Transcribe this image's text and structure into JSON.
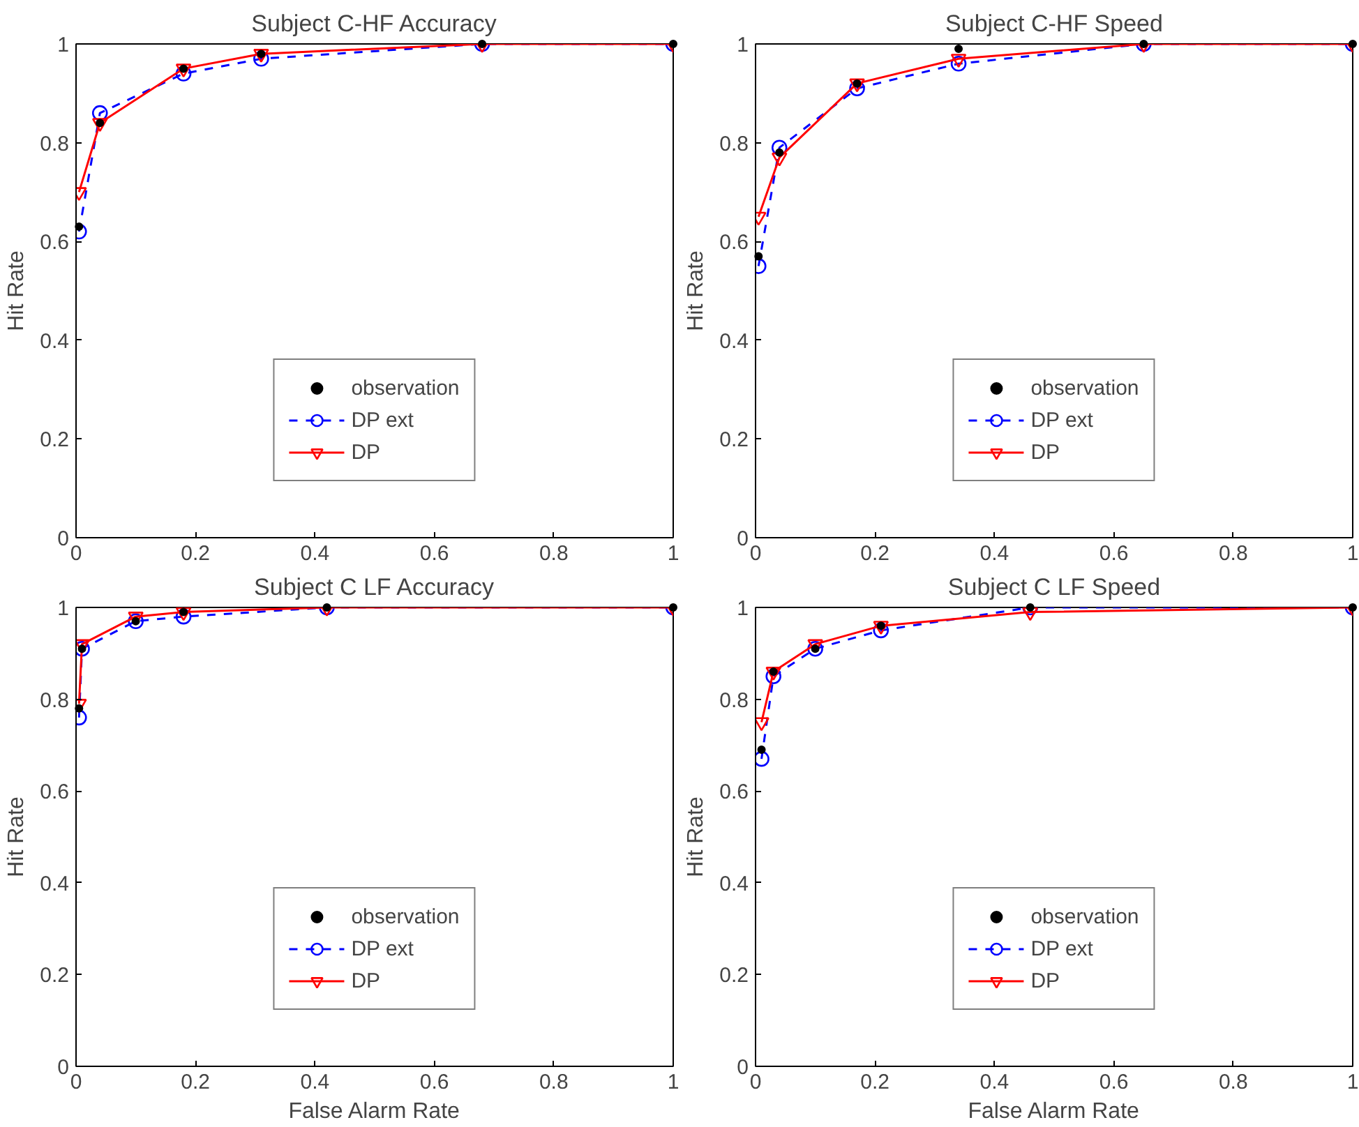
{
  "chart_data": [
    {
      "type": "line",
      "title": "Subject C-HF Accuracy",
      "ylabel": "Hit Rate",
      "xlim": [
        0,
        1
      ],
      "ylim": [
        0,
        1
      ],
      "xticks": [
        0,
        0.2,
        0.4,
        0.6,
        0.8,
        1
      ],
      "yticks": [
        0,
        0.2,
        0.4,
        0.6,
        0.8,
        1
      ],
      "grid": false,
      "legend": "bottom",
      "series": [
        {
          "name": "observation",
          "type": "scatter",
          "marker": "circle",
          "color": "#000000",
          "x": [
            0.005,
            0.04,
            0.18,
            0.31,
            0.68,
            1.0
          ],
          "values": [
            0.63,
            0.84,
            0.95,
            0.98,
            1.0,
            1.0
          ]
        },
        {
          "name": "DP ext",
          "marker": "circle",
          "line_style": "dashed",
          "color": "#0000ff",
          "x": [
            0.005,
            0.04,
            0.18,
            0.31,
            0.68,
            1.0
          ],
          "values": [
            0.62,
            0.86,
            0.94,
            0.97,
            1.0,
            1.0
          ]
        },
        {
          "name": "DP",
          "marker": "triangle",
          "line_style": "solid",
          "color": "#ff0000",
          "x": [
            0.005,
            0.04,
            0.18,
            0.31,
            0.68,
            1.0
          ],
          "values": [
            0.7,
            0.84,
            0.95,
            0.98,
            1.0,
            1.0
          ]
        }
      ]
    },
    {
      "type": "line",
      "title": "Subject C-HF Speed",
      "ylabel": "Hit Rate",
      "xlim": [
        0,
        1
      ],
      "ylim": [
        0,
        1
      ],
      "xticks": [
        0,
        0.2,
        0.4,
        0.6,
        0.8,
        1
      ],
      "yticks": [
        0,
        0.2,
        0.4,
        0.6,
        0.8,
        1
      ],
      "grid": false,
      "legend": "bottom",
      "series": [
        {
          "name": "observation",
          "type": "scatter",
          "marker": "circle",
          "color": "#000000",
          "x": [
            0.005,
            0.04,
            0.17,
            0.34,
            0.65,
            1.0
          ],
          "values": [
            0.57,
            0.78,
            0.92,
            0.99,
            1.0,
            1.0
          ]
        },
        {
          "name": "DP ext",
          "marker": "circle",
          "line_style": "dashed",
          "color": "#0000ff",
          "x": [
            0.005,
            0.04,
            0.17,
            0.34,
            0.65,
            1.0
          ],
          "values": [
            0.55,
            0.79,
            0.91,
            0.96,
            1.0,
            1.0
          ]
        },
        {
          "name": "DP",
          "marker": "triangle",
          "line_style": "solid",
          "color": "#ff0000",
          "x": [
            0.005,
            0.04,
            0.17,
            0.34,
            0.65,
            1.0
          ],
          "values": [
            0.65,
            0.77,
            0.92,
            0.97,
            1.0,
            1.0
          ]
        }
      ]
    },
    {
      "type": "line",
      "title": "Subject C LF Accuracy",
      "ylabel": "Hit Rate",
      "xlabel": "False Alarm Rate",
      "xlim": [
        0,
        1
      ],
      "ylim": [
        0,
        1
      ],
      "xticks": [
        0,
        0.2,
        0.4,
        0.6,
        0.8,
        1
      ],
      "yticks": [
        0,
        0.2,
        0.4,
        0.6,
        0.8,
        1
      ],
      "grid": false,
      "legend": "bottom",
      "series": [
        {
          "name": "observation",
          "type": "scatter",
          "marker": "circle",
          "color": "#000000",
          "x": [
            0.005,
            0.01,
            0.1,
            0.18,
            0.42,
            1.0
          ],
          "values": [
            0.78,
            0.91,
            0.97,
            0.99,
            1.0,
            1.0
          ]
        },
        {
          "name": "DP ext",
          "marker": "circle",
          "line_style": "dashed",
          "color": "#0000ff",
          "x": [
            0.005,
            0.01,
            0.1,
            0.18,
            0.42,
            1.0
          ],
          "values": [
            0.76,
            0.91,
            0.97,
            0.98,
            1.0,
            1.0
          ]
        },
        {
          "name": "DP",
          "marker": "triangle",
          "line_style": "solid",
          "color": "#ff0000",
          "x": [
            0.005,
            0.01,
            0.1,
            0.18,
            0.42,
            1.0
          ],
          "values": [
            0.79,
            0.92,
            0.98,
            0.99,
            1.0,
            1.0
          ]
        }
      ]
    },
    {
      "type": "line",
      "title": "Subject C LF Speed",
      "ylabel": "Hit Rate",
      "xlabel": "False Alarm Rate",
      "xlim": [
        0,
        1
      ],
      "ylim": [
        0,
        1
      ],
      "xticks": [
        0,
        0.2,
        0.4,
        0.6,
        0.8,
        1
      ],
      "yticks": [
        0,
        0.2,
        0.4,
        0.6,
        0.8,
        1
      ],
      "grid": false,
      "legend": "bottom",
      "series": [
        {
          "name": "observation",
          "type": "scatter",
          "marker": "circle",
          "color": "#000000",
          "x": [
            0.01,
            0.03,
            0.1,
            0.21,
            0.46,
            1.0
          ],
          "values": [
            0.69,
            0.86,
            0.91,
            0.96,
            1.0,
            1.0
          ]
        },
        {
          "name": "DP ext",
          "marker": "circle",
          "line_style": "dashed",
          "color": "#0000ff",
          "x": [
            0.01,
            0.03,
            0.1,
            0.21,
            0.46,
            1.0
          ],
          "values": [
            0.67,
            0.85,
            0.91,
            0.95,
            1.0,
            1.0
          ]
        },
        {
          "name": "DP",
          "marker": "triangle",
          "line_style": "solid",
          "color": "#ff0000",
          "x": [
            0.01,
            0.03,
            0.1,
            0.21,
            0.46,
            1.0
          ],
          "values": [
            0.75,
            0.86,
            0.92,
            0.96,
            0.99,
            1.0
          ]
        }
      ]
    }
  ]
}
